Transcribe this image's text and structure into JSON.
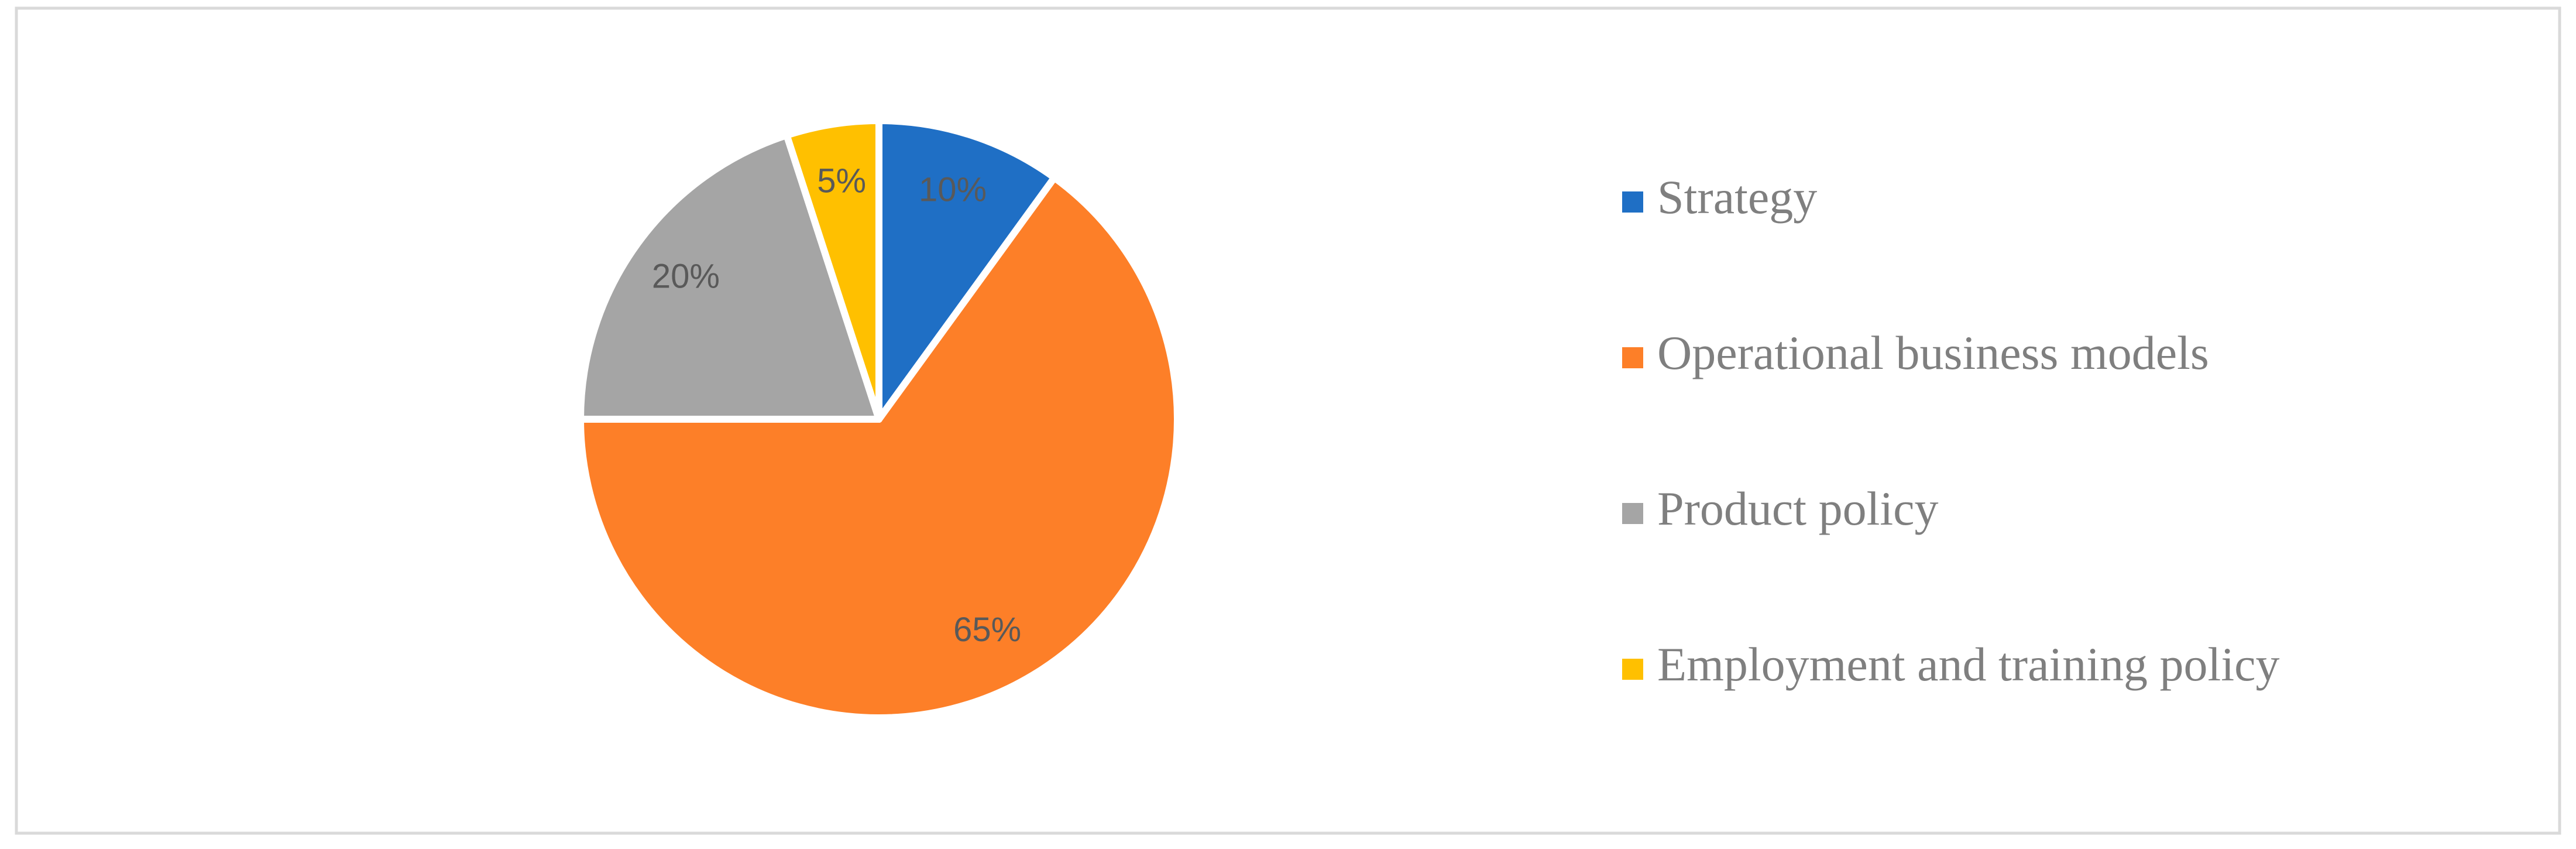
{
  "chart_data": {
    "type": "pie",
    "categories": [
      "Strategy",
      "Operational business models",
      "Product policy",
      "Employment and training policy"
    ],
    "values": [
      10,
      65,
      20,
      5
    ],
    "value_labels": [
      "10%",
      "65%",
      "20%",
      "5%"
    ],
    "colors": [
      "#1f6fc5",
      "#fd7f28",
      "#a5a5a5",
      "#ffc000"
    ],
    "legend": "right"
  }
}
